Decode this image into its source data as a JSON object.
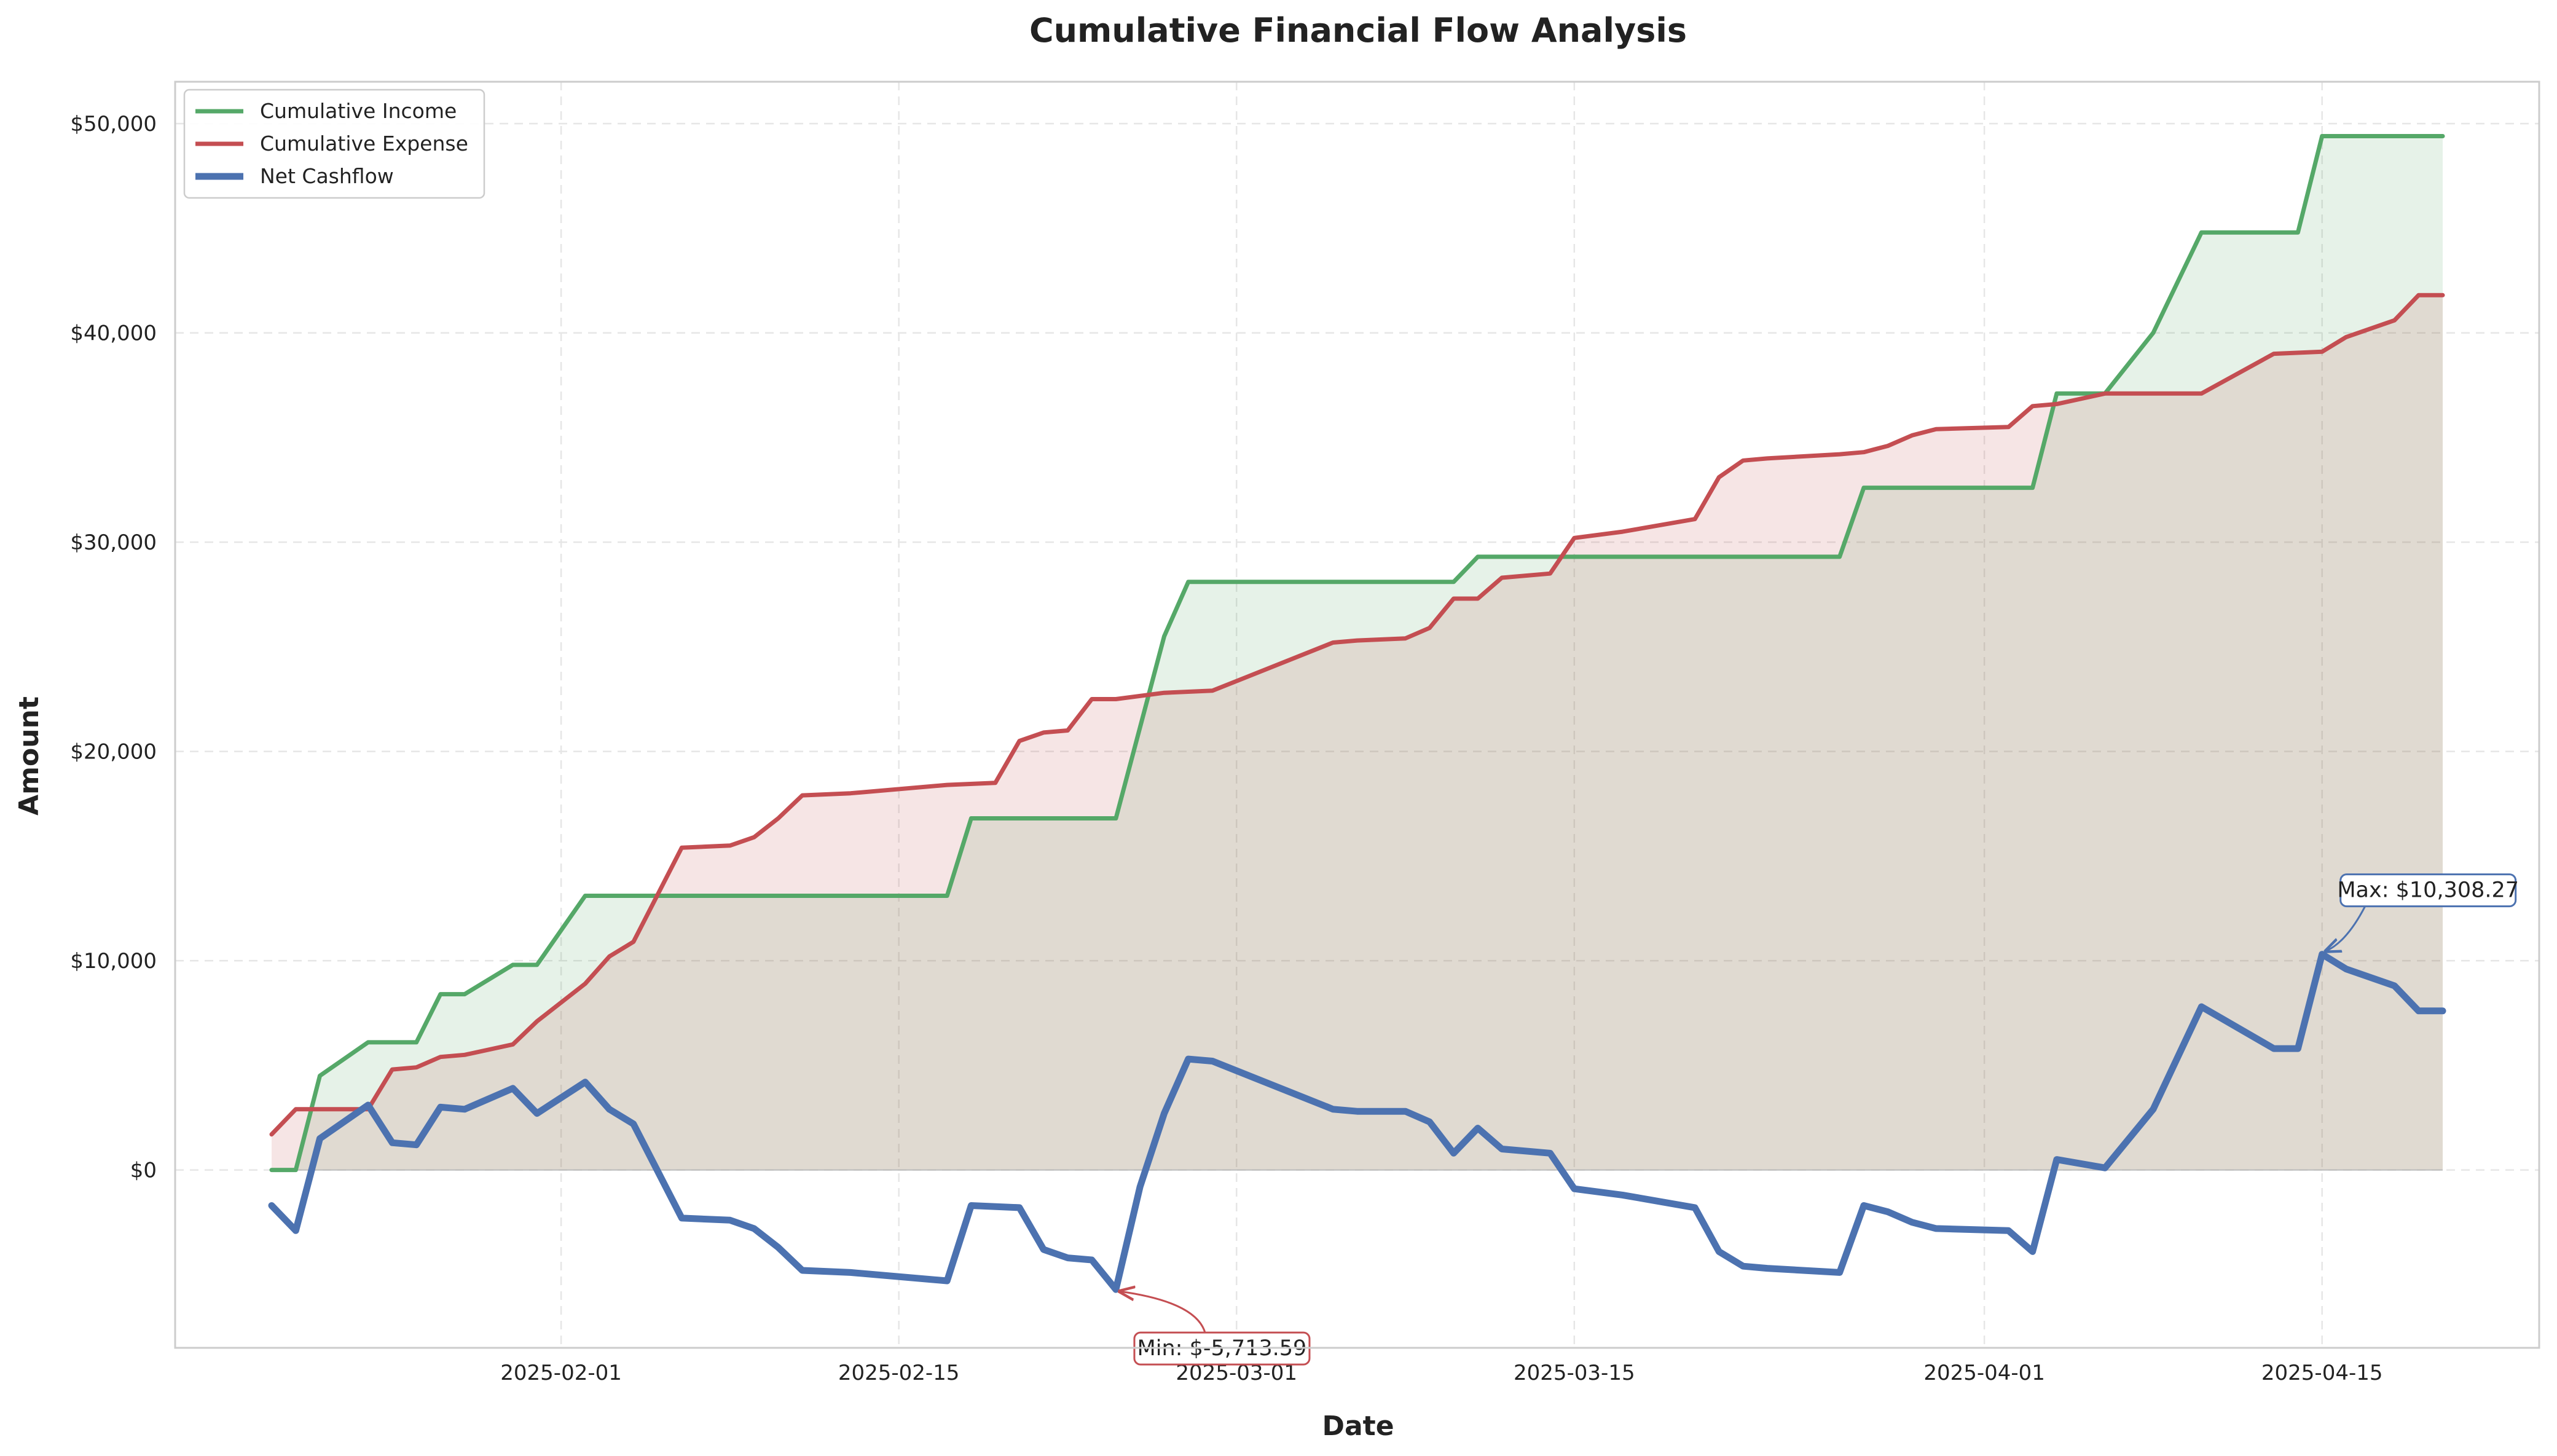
{
  "chart_data": {
    "type": "line",
    "title": "Cumulative Financial Flow Analysis",
    "xlabel": "Date",
    "ylabel": "Amount",
    "x_ticks": [
      "2025-02-01",
      "2025-02-15",
      "2025-03-01",
      "2025-03-15",
      "2025-04-01",
      "2025-04-15"
    ],
    "y_ticks": [
      "$0",
      "$10,000",
      "$20,000",
      "$30,000",
      "$40,000",
      "$50,000"
    ],
    "xlim": [
      "2025-01-16",
      "2025-04-24"
    ],
    "ylim": [
      -8500,
      52000
    ],
    "grid": true,
    "legend_position": "top-left",
    "fill_between": true,
    "colors": {
      "income": "#55a868",
      "expense": "#c44e52",
      "net": "#4c72b0",
      "income_fill": "#e4f1e6",
      "expense_fill": "#f5e3e3",
      "overlap_fill": "#dfd6d1"
    },
    "series": [
      {
        "name": "Cumulative Income",
        "color": "#55a868",
        "points": [
          [
            "2025-01-20",
            0
          ],
          [
            "2025-01-21",
            0
          ],
          [
            "2025-01-22",
            4500
          ],
          [
            "2025-01-24",
            6100
          ],
          [
            "2025-01-26",
            6100
          ],
          [
            "2025-01-27",
            8400
          ],
          [
            "2025-01-28",
            8400
          ],
          [
            "2025-01-30",
            9800
          ],
          [
            "2025-01-31",
            9800
          ],
          [
            "2025-02-02",
            13100
          ],
          [
            "2025-02-17",
            13100
          ],
          [
            "2025-02-18",
            16800
          ],
          [
            "2025-02-24",
            16800
          ],
          [
            "2025-02-26",
            25500
          ],
          [
            "2025-02-27",
            28100
          ],
          [
            "2025-03-10",
            28100
          ],
          [
            "2025-03-11",
            29300
          ],
          [
            "2025-03-26",
            29300
          ],
          [
            "2025-03-27",
            32600
          ],
          [
            "2025-04-03",
            32600
          ],
          [
            "2025-04-04",
            37100
          ],
          [
            "2025-04-06",
            37100
          ],
          [
            "2025-04-08",
            40000
          ],
          [
            "2025-04-10",
            44800
          ],
          [
            "2025-04-14",
            44800
          ],
          [
            "2025-04-15",
            49400
          ],
          [
            "2025-04-20",
            49400
          ]
        ]
      },
      {
        "name": "Cumulative Expense",
        "color": "#c44e52",
        "points": [
          [
            "2025-01-20",
            1700
          ],
          [
            "2025-01-21",
            2900
          ],
          [
            "2025-01-24",
            2900
          ],
          [
            "2025-01-25",
            4800
          ],
          [
            "2025-01-26",
            4900
          ],
          [
            "2025-01-27",
            5400
          ],
          [
            "2025-01-28",
            5500
          ],
          [
            "2025-01-30",
            6000
          ],
          [
            "2025-01-31",
            7100
          ],
          [
            "2025-02-02",
            8900
          ],
          [
            "2025-02-03",
            10200
          ],
          [
            "2025-02-04",
            10900
          ],
          [
            "2025-02-06",
            15400
          ],
          [
            "2025-02-08",
            15500
          ],
          [
            "2025-02-09",
            15900
          ],
          [
            "2025-02-10",
            16800
          ],
          [
            "2025-02-11",
            17900
          ],
          [
            "2025-02-13",
            18000
          ],
          [
            "2025-02-17",
            18400
          ],
          [
            "2025-02-19",
            18500
          ],
          [
            "2025-02-20",
            20500
          ],
          [
            "2025-02-21",
            20900
          ],
          [
            "2025-02-22",
            21000
          ],
          [
            "2025-02-23",
            22500
          ],
          [
            "2025-02-24",
            22500
          ],
          [
            "2025-02-26",
            22800
          ],
          [
            "2025-02-28",
            22900
          ],
          [
            "2025-03-05",
            25200
          ],
          [
            "2025-03-06",
            25300
          ],
          [
            "2025-03-08",
            25400
          ],
          [
            "2025-03-09",
            25900
          ],
          [
            "2025-03-10",
            27300
          ],
          [
            "2025-03-11",
            27300
          ],
          [
            "2025-03-12",
            28300
          ],
          [
            "2025-03-14",
            28500
          ],
          [
            "2025-03-15",
            30200
          ],
          [
            "2025-03-17",
            30500
          ],
          [
            "2025-03-20",
            31100
          ],
          [
            "2025-03-21",
            33100
          ],
          [
            "2025-03-22",
            33900
          ],
          [
            "2025-03-23",
            34000
          ],
          [
            "2025-03-26",
            34200
          ],
          [
            "2025-03-27",
            34300
          ],
          [
            "2025-03-28",
            34600
          ],
          [
            "2025-03-29",
            35100
          ],
          [
            "2025-03-30",
            35400
          ],
          [
            "2025-04-02",
            35500
          ],
          [
            "2025-04-03",
            36500
          ],
          [
            "2025-04-04",
            36600
          ],
          [
            "2025-04-06",
            37100
          ],
          [
            "2025-04-10",
            37100
          ],
          [
            "2025-04-13",
            39000
          ],
          [
            "2025-04-15",
            39100
          ],
          [
            "2025-04-16",
            39800
          ],
          [
            "2025-04-18",
            40600
          ],
          [
            "2025-04-19",
            41800
          ],
          [
            "2025-04-20",
            41800
          ]
        ]
      },
      {
        "name": "Net Cashflow",
        "color": "#4c72b0",
        "points": [
          [
            "2025-01-20",
            -1700
          ],
          [
            "2025-01-21",
            -2900
          ],
          [
            "2025-01-22",
            1500
          ],
          [
            "2025-01-24",
            3100
          ],
          [
            "2025-01-25",
            1300
          ],
          [
            "2025-01-26",
            1200
          ],
          [
            "2025-01-27",
            3000
          ],
          [
            "2025-01-28",
            2900
          ],
          [
            "2025-01-30",
            3900
          ],
          [
            "2025-01-31",
            2700
          ],
          [
            "2025-02-02",
            4200
          ],
          [
            "2025-02-03",
            2900
          ],
          [
            "2025-02-04",
            2200
          ],
          [
            "2025-02-06",
            -2300
          ],
          [
            "2025-02-08",
            -2400
          ],
          [
            "2025-02-09",
            -2800
          ],
          [
            "2025-02-10",
            -3700
          ],
          [
            "2025-02-11",
            -4800
          ],
          [
            "2025-02-13",
            -4900
          ],
          [
            "2025-02-17",
            -5300
          ],
          [
            "2025-02-18",
            -1700
          ],
          [
            "2025-02-20",
            -1800
          ],
          [
            "2025-02-21",
            -3800
          ],
          [
            "2025-02-22",
            -4200
          ],
          [
            "2025-02-23",
            -4300
          ],
          [
            "2025-02-24",
            -5713.59
          ],
          [
            "2025-02-25",
            -800
          ],
          [
            "2025-02-26",
            2700
          ],
          [
            "2025-02-27",
            5300
          ],
          [
            "2025-02-28",
            5200
          ],
          [
            "2025-03-05",
            2900
          ],
          [
            "2025-03-06",
            2800
          ],
          [
            "2025-03-08",
            2800
          ],
          [
            "2025-03-09",
            2300
          ],
          [
            "2025-03-10",
            800
          ],
          [
            "2025-03-11",
            2000
          ],
          [
            "2025-03-12",
            1000
          ],
          [
            "2025-03-14",
            800
          ],
          [
            "2025-03-15",
            -900
          ],
          [
            "2025-03-17",
            -1200
          ],
          [
            "2025-03-20",
            -1800
          ],
          [
            "2025-03-21",
            -3900
          ],
          [
            "2025-03-22",
            -4600
          ],
          [
            "2025-03-23",
            -4700
          ],
          [
            "2025-03-26",
            -4900
          ],
          [
            "2025-03-27",
            -1700
          ],
          [
            "2025-03-28",
            -2000
          ],
          [
            "2025-03-29",
            -2500
          ],
          [
            "2025-03-30",
            -2800
          ],
          [
            "2025-04-02",
            -2900
          ],
          [
            "2025-04-03",
            -3900
          ],
          [
            "2025-04-04",
            500
          ],
          [
            "2025-04-06",
            100
          ],
          [
            "2025-04-08",
            2900
          ],
          [
            "2025-04-10",
            7800
          ],
          [
            "2025-04-13",
            5800
          ],
          [
            "2025-04-14",
            5800
          ],
          [
            "2025-04-15",
            10308.27
          ],
          [
            "2025-04-16",
            9600
          ],
          [
            "2025-04-18",
            8800
          ],
          [
            "2025-04-19",
            7600
          ],
          [
            "2025-04-20",
            7600
          ]
        ]
      }
    ],
    "annotations": [
      {
        "label": "Min: $-5,713.59",
        "date": "2025-02-24",
        "value": -5713.59,
        "color": "#c44e52",
        "text_placement": "below-right"
      },
      {
        "label": "Max: $10,308.27",
        "date": "2025-04-15",
        "value": 10308.27,
        "color": "#4c72b0",
        "text_placement": "above-right"
      }
    ]
  }
}
